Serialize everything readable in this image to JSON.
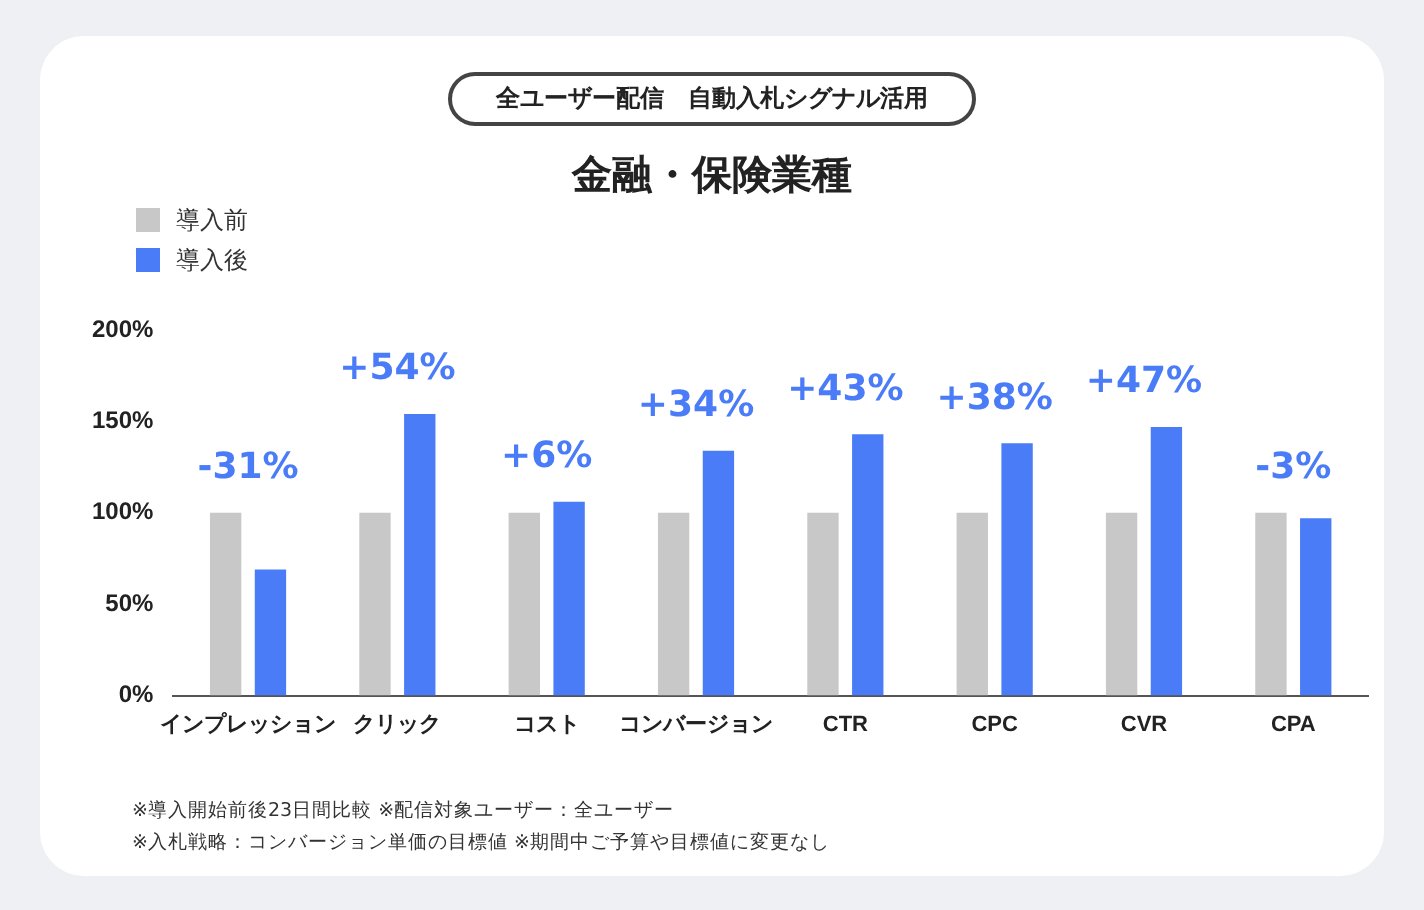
{
  "chart_data": {
    "type": "bar",
    "title": "金融・保険業種",
    "subtitle": "全ユーザー配信　自動入札シグナル活用",
    "categories": [
      "インプレッション",
      "クリック",
      "コスト",
      "コンバージョン",
      "CTR",
      "CPC",
      "CVR",
      "CPA"
    ],
    "series": [
      {
        "name": "導入前",
        "color": "#c8c8c8",
        "values": [
          100,
          100,
          100,
          100,
          100,
          100,
          100,
          100
        ]
      },
      {
        "name": "導入後",
        "color": "#4a7cf7",
        "values": [
          69,
          154,
          106,
          134,
          143,
          138,
          147,
          97
        ]
      }
    ],
    "ylim": [
      0,
      200
    ],
    "yticks": [
      {
        "value": 0,
        "label": "0%"
      },
      {
        "value": 50,
        "label": "50%"
      },
      {
        "value": 100,
        "label": "100%"
      },
      {
        "value": 150,
        "label": "150%"
      },
      {
        "value": 200,
        "label": "200%"
      }
    ],
    "grid": false,
    "legend": "top left",
    "annotations": [
      {
        "text": "-31%",
        "x": "インプレッション",
        "y": 100
      },
      {
        "text": "+54%",
        "x": "クリック",
        "y": 154
      },
      {
        "text": "+6%",
        "x": "コスト",
        "y": 106
      },
      {
        "text": "+34%",
        "x": "コンバージョン",
        "y": 134
      },
      {
        "text": "+43%",
        "x": "CTR",
        "y": 143
      },
      {
        "text": "+38%",
        "x": "CPC",
        "y": 138
      },
      {
        "text": "+47%",
        "x": "CVR",
        "y": 147
      },
      {
        "text": "-3%",
        "x": "CPA",
        "y": 100
      },
      "※導入開始前後23日間比較 ※配信対象ユーザー：全ユーザー",
      "※入札戦略：コンバージョン単価の目標値 ※期間中ご予算や目標値に変更なし"
    ]
  }
}
